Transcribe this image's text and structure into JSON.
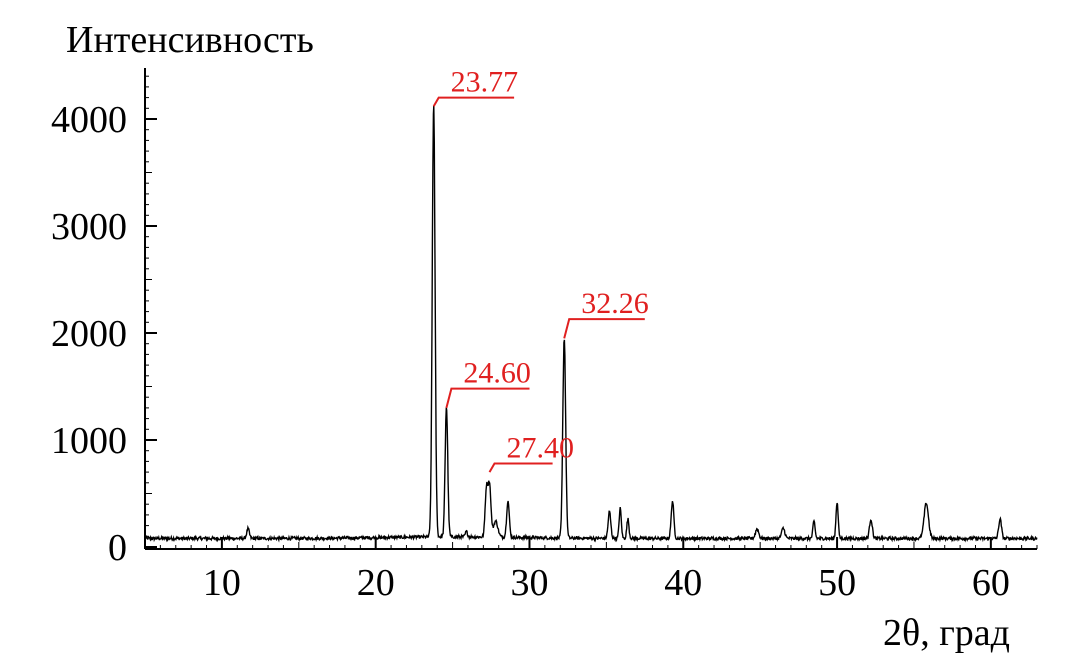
{
  "chart_data": {
    "type": "line",
    "title": "",
    "xlabel": "2θ, град",
    "ylabel": "Интенсивность",
    "xlim": [
      5,
      63
    ],
    "ylim": [
      0,
      4500
    ],
    "x_ticks": [
      10,
      20,
      30,
      40,
      50,
      60
    ],
    "y_ticks": [
      0,
      1000,
      2000,
      3000,
      4000
    ],
    "grid": false,
    "legend": "none",
    "baseline": 80,
    "line_color": "#000000",
    "annotation_color": "#e02020",
    "series": [
      {
        "peaks": [
          {
            "x": 11.7,
            "y": 170,
            "w": 0.12
          },
          {
            "x": 23.77,
            "y": 4120,
            "w": 0.13
          },
          {
            "x": 24.6,
            "y": 1300,
            "w": 0.12
          },
          {
            "x": 25.9,
            "y": 130,
            "w": 0.1
          },
          {
            "x": 27.2,
            "y": 520,
            "w": 0.12
          },
          {
            "x": 27.4,
            "y": 570,
            "w": 0.13
          },
          {
            "x": 27.8,
            "y": 230,
            "w": 0.2
          },
          {
            "x": 28.6,
            "y": 420,
            "w": 0.12
          },
          {
            "x": 32.26,
            "y": 1950,
            "w": 0.13
          },
          {
            "x": 35.2,
            "y": 330,
            "w": 0.12
          },
          {
            "x": 35.9,
            "y": 360,
            "w": 0.1
          },
          {
            "x": 36.4,
            "y": 260,
            "w": 0.1
          },
          {
            "x": 39.3,
            "y": 430,
            "w": 0.12
          },
          {
            "x": 44.8,
            "y": 170,
            "w": 0.15
          },
          {
            "x": 46.5,
            "y": 175,
            "w": 0.15
          },
          {
            "x": 48.5,
            "y": 240,
            "w": 0.1
          },
          {
            "x": 50.0,
            "y": 420,
            "w": 0.1
          },
          {
            "x": 52.2,
            "y": 260,
            "w": 0.13
          },
          {
            "x": 55.8,
            "y": 410,
            "w": 0.2
          },
          {
            "x": 60.6,
            "y": 260,
            "w": 0.13
          }
        ]
      }
    ],
    "annotations": [
      {
        "label": "23.77",
        "x": 23.77,
        "y": 4120,
        "label_x": 29.0,
        "label_y": 4200
      },
      {
        "label": "24.60",
        "x": 24.6,
        "y": 1300,
        "label_x": 30.0,
        "label_y": 1480
      },
      {
        "label": "27.40",
        "x": 27.4,
        "y": 700,
        "label_x": 31.5,
        "label_y": 780
      },
      {
        "label": "32.26",
        "x": 32.26,
        "y": 1950,
        "label_x": 37.5,
        "label_y": 2130
      }
    ]
  }
}
